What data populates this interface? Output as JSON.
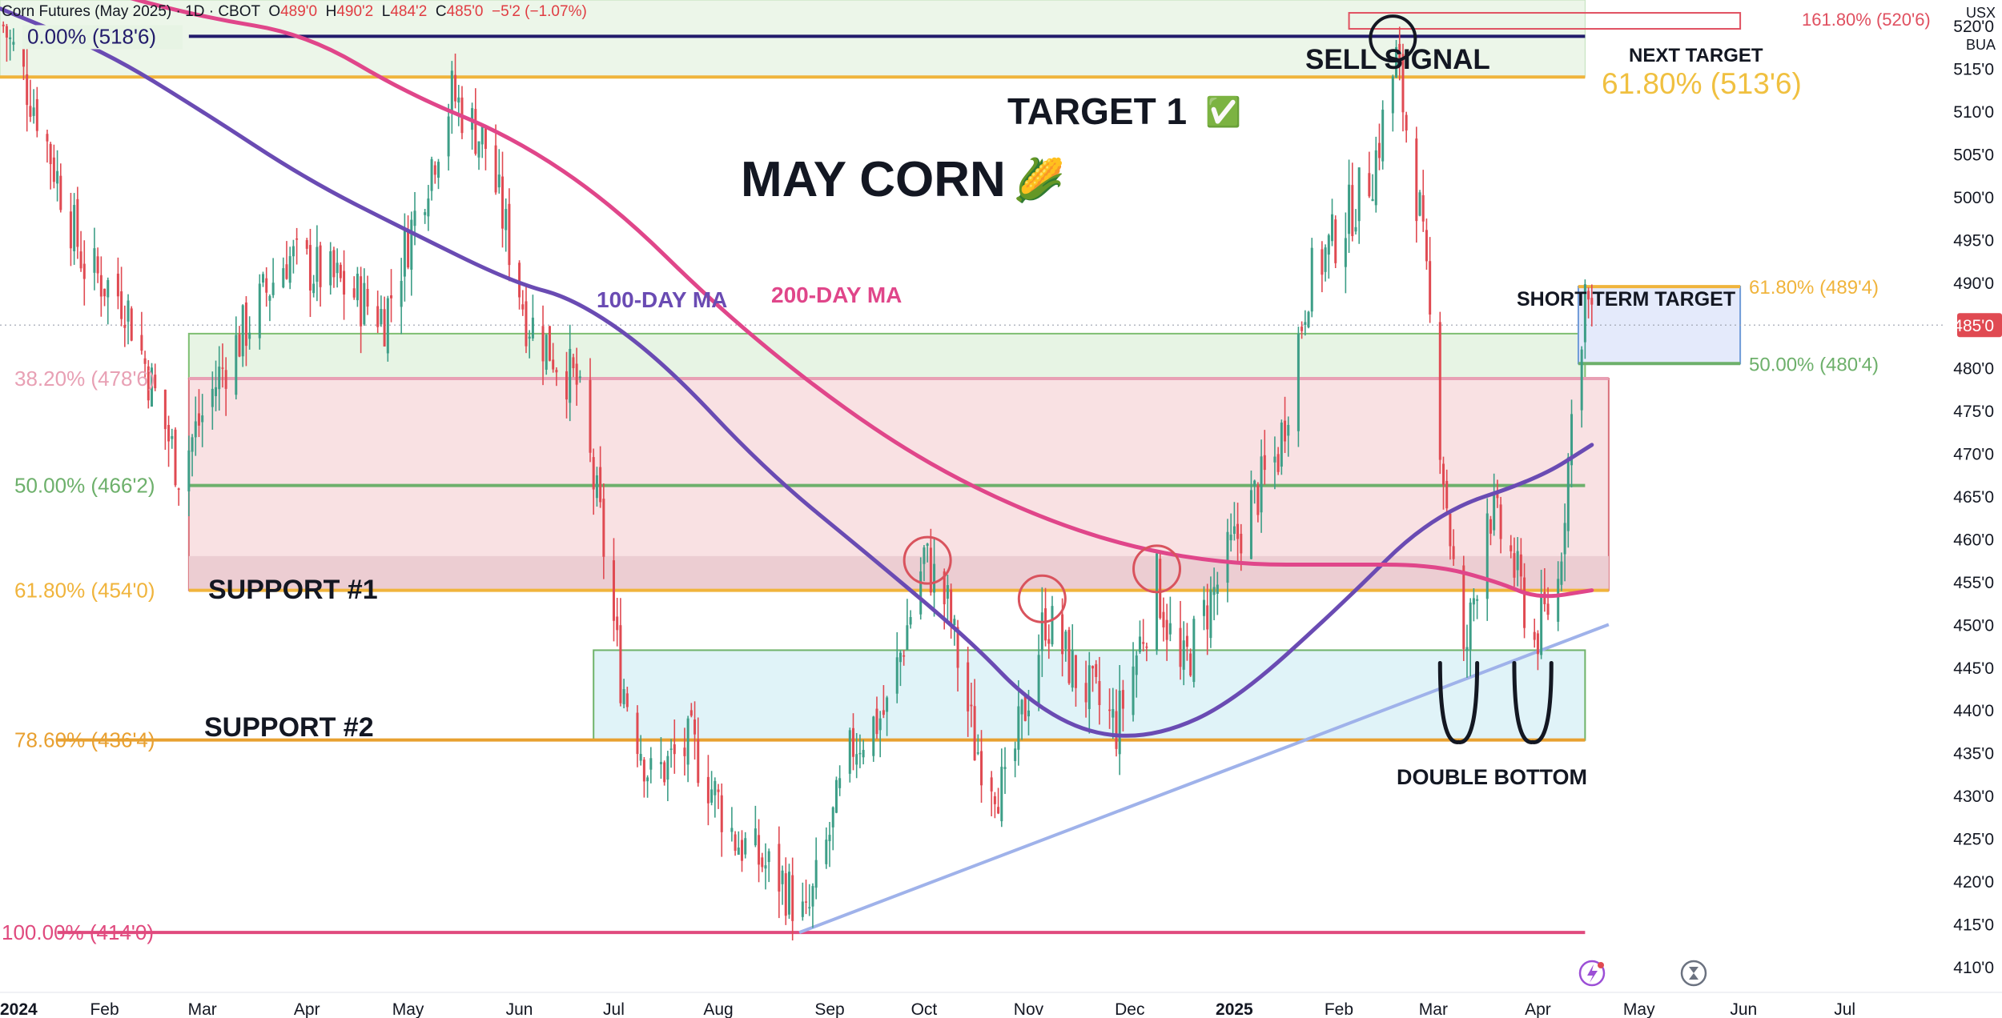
{
  "header": {
    "symbol": "Corn Futures (May 2025)",
    "interval": "1D",
    "exchange": "CBOT",
    "open_label": "O",
    "open": "489'0",
    "high_label": "H",
    "high": "490'2",
    "low_label": "L",
    "low": "484'2",
    "close_label": "C",
    "close": "485'0",
    "change": "−5'2 (−1.07%)"
  },
  "corner": {
    "currency": "USX",
    "unit": "BUA"
  },
  "chart_data": {
    "type": "candlestick",
    "title": "MAY CORN",
    "title_emoji": "🌽",
    "x_type": "date",
    "xlim": [
      "2024-01-01",
      "2025-07-31"
    ],
    "ylim": [
      407,
      523
    ],
    "y_axis_position": "right",
    "y_ticks": [
      {
        "value": 520,
        "label": "520'0"
      },
      {
        "value": 515,
        "label": "515'0"
      },
      {
        "value": 510,
        "label": "510'0"
      },
      {
        "value": 505,
        "label": "505'0"
      },
      {
        "value": 500,
        "label": "500'0"
      },
      {
        "value": 495,
        "label": "495'0"
      },
      {
        "value": 490,
        "label": "490'0"
      },
      {
        "value": 480,
        "label": "480'0"
      },
      {
        "value": 475,
        "label": "475'0"
      },
      {
        "value": 470,
        "label": "470'0"
      },
      {
        "value": 465,
        "label": "465'0"
      },
      {
        "value": 460,
        "label": "460'0"
      },
      {
        "value": 455,
        "label": "455'0"
      },
      {
        "value": 450,
        "label": "450'0"
      },
      {
        "value": 445,
        "label": "445'0"
      },
      {
        "value": 440,
        "label": "440'0"
      },
      {
        "value": 435,
        "label": "435'0"
      },
      {
        "value": 430,
        "label": "430'0"
      },
      {
        "value": 425,
        "label": "425'0"
      },
      {
        "value": 420,
        "label": "420'0"
      },
      {
        "value": 415,
        "label": "415'0"
      },
      {
        "value": 410,
        "label": "410'0"
      }
    ],
    "x_ticks": [
      {
        "date": "2024-01-01",
        "label": "2024",
        "bold": true
      },
      {
        "date": "2024-02-01",
        "label": "Feb"
      },
      {
        "date": "2024-03-01",
        "label": "Mar"
      },
      {
        "date": "2024-04-01",
        "label": "Apr"
      },
      {
        "date": "2024-05-01",
        "label": "May"
      },
      {
        "date": "2024-06-03",
        "label": "Jun"
      },
      {
        "date": "2024-07-01",
        "label": "Jul"
      },
      {
        "date": "2024-08-01",
        "label": "Aug"
      },
      {
        "date": "2024-09-03",
        "label": "Sep"
      },
      {
        "date": "2024-10-01",
        "label": "Oct"
      },
      {
        "date": "2024-11-01",
        "label": "Nov"
      },
      {
        "date": "2024-12-01",
        "label": "Dec"
      },
      {
        "date": "2025-01-01",
        "label": "2025",
        "bold": true
      },
      {
        "date": "2025-02-01",
        "label": "Feb"
      },
      {
        "date": "2025-03-01",
        "label": "Mar"
      },
      {
        "date": "2025-04-01",
        "label": "Apr"
      },
      {
        "date": "2025-05-01",
        "label": "May"
      },
      {
        "date": "2025-06-01",
        "label": "Jun"
      },
      {
        "date": "2025-07-01",
        "label": "Jul"
      }
    ],
    "last_price": {
      "value": 485,
      "label": "485'0"
    },
    "candle_anchors": [
      [
        "2024-01-02",
        520
      ],
      [
        "2024-01-12",
        510
      ],
      [
        "2024-01-26",
        492
      ],
      [
        "2024-02-07",
        488
      ],
      [
        "2024-02-23",
        468
      ],
      [
        "2024-03-07",
        480
      ],
      [
        "2024-03-26",
        493
      ],
      [
        "2024-04-10",
        490
      ],
      [
        "2024-04-24",
        486
      ],
      [
        "2024-05-14",
        512
      ],
      [
        "2024-05-24",
        506
      ],
      [
        "2024-06-05",
        486
      ],
      [
        "2024-06-20",
        478
      ],
      [
        "2024-06-27",
        462
      ],
      [
        "2024-07-03",
        444
      ],
      [
        "2024-07-12",
        432
      ],
      [
        "2024-07-24",
        436
      ],
      [
        "2024-08-06",
        425
      ],
      [
        "2024-08-20",
        420
      ],
      [
        "2024-08-27",
        415
      ],
      [
        "2024-09-10",
        436
      ],
      [
        "2024-09-20",
        440
      ],
      [
        "2024-10-01",
        458
      ],
      [
        "2024-10-08",
        452
      ],
      [
        "2024-10-16",
        436
      ],
      [
        "2024-10-25",
        430
      ],
      [
        "2024-11-06",
        451
      ],
      [
        "2024-11-15",
        444
      ],
      [
        "2024-11-27",
        438
      ],
      [
        "2024-12-09",
        455
      ],
      [
        "2024-12-16",
        444
      ],
      [
        "2024-12-24",
        452
      ],
      [
        "2025-01-06",
        464
      ],
      [
        "2025-01-14",
        470
      ],
      [
        "2025-01-23",
        490
      ],
      [
        "2025-02-04",
        498
      ],
      [
        "2025-02-11",
        503
      ],
      [
        "2025-02-18",
        516
      ],
      [
        "2025-02-25",
        498
      ],
      [
        "2025-03-04",
        468
      ],
      [
        "2025-03-10",
        445
      ],
      [
        "2025-03-17",
        464
      ],
      [
        "2025-03-24",
        458
      ],
      [
        "2025-03-31",
        448
      ],
      [
        "2025-04-07",
        455
      ],
      [
        "2025-04-11",
        474
      ],
      [
        "2025-04-15",
        489
      ],
      [
        "2025-04-17",
        485
      ]
    ],
    "moving_averages": [
      {
        "name": "100-DAY MA",
        "color": "#6a4bb3",
        "points": [
          [
            "2024-01-01",
            522
          ],
          [
            "2024-02-01",
            517
          ],
          [
            "2024-03-01",
            510
          ],
          [
            "2024-04-01",
            502
          ],
          [
            "2024-05-01",
            496
          ],
          [
            "2024-06-01",
            490
          ],
          [
            "2024-06-20",
            488
          ],
          [
            "2024-07-15",
            481
          ],
          [
            "2024-08-15",
            468
          ],
          [
            "2024-09-15",
            458
          ],
          [
            "2024-10-15",
            448
          ],
          [
            "2024-11-01",
            441
          ],
          [
            "2024-11-20",
            437
          ],
          [
            "2024-12-10",
            437
          ],
          [
            "2025-01-01",
            441
          ],
          [
            "2025-02-01",
            452
          ],
          [
            "2025-03-01",
            463
          ],
          [
            "2025-04-01",
            467
          ],
          [
            "2025-04-17",
            471
          ]
        ]
      },
      {
        "name": "200-DAY MA",
        "color": "#e0468a",
        "points": [
          [
            "2024-01-01",
            528
          ],
          [
            "2024-02-01",
            524
          ],
          [
            "2024-03-01",
            521
          ],
          [
            "2024-04-01",
            519
          ],
          [
            "2024-05-01",
            512
          ],
          [
            "2024-06-01",
            507
          ],
          [
            "2024-07-01",
            499
          ],
          [
            "2024-08-01",
            487
          ],
          [
            "2024-09-01",
            477
          ],
          [
            "2024-10-01",
            469
          ],
          [
            "2024-11-01",
            463
          ],
          [
            "2024-12-01",
            459
          ],
          [
            "2025-01-01",
            457
          ],
          [
            "2025-02-01",
            457
          ],
          [
            "2025-03-01",
            457
          ],
          [
            "2025-03-20",
            455
          ],
          [
            "2025-04-01",
            453
          ],
          [
            "2025-04-17",
            454
          ]
        ]
      }
    ],
    "fib_levels": [
      {
        "label": "0.00% (518'6)",
        "value": 518.75,
        "color": "#221b6b"
      },
      {
        "label": "38.20% (478'6)",
        "value": 478.75,
        "color": "#e8a0b4"
      },
      {
        "label": "50.00% (466'2)",
        "value": 466.25,
        "color": "#6db06b"
      },
      {
        "label": "61.80% (454'0)",
        "value": 454.0,
        "color": "#f0b43c"
      },
      {
        "label": "78.60% (436'4)",
        "value": 436.5,
        "color": "#e8a030"
      },
      {
        "label": "100.00% (414'0)",
        "value": 414.0,
        "color": "#e04a7e"
      }
    ],
    "right_levels": [
      {
        "label": "61.80% (489'4)",
        "value": 489.5,
        "color": "#f0b43c"
      },
      {
        "label": "50.00% (480'4)",
        "value": 480.5,
        "color": "#6db06b"
      },
      {
        "label": "161.80% (520'6)",
        "value": 520.75,
        "color": "#e05060"
      },
      {
        "label": "61.80% (513'6)",
        "value": 513.75,
        "color": "#f0c040"
      }
    ],
    "annotations": [
      {
        "text": "TARGET 1",
        "emoji": "✅"
      },
      {
        "text": "SELL SIGNAL"
      },
      {
        "text": "NEXT TARGET"
      },
      {
        "text": "SHORT TERM TARGET"
      },
      {
        "text": "SUPPORT #1"
      },
      {
        "text": "SUPPORT #2"
      },
      {
        "text": "DOUBLE BOTTOM"
      },
      {
        "text": "100-DAY MA",
        "color": "#6a4bb3"
      },
      {
        "text": "200-DAY MA",
        "color": "#e0468a"
      }
    ],
    "colors": {
      "up": "#3d9e87",
      "down": "#e04a52",
      "trendline": "#9fb2ea"
    }
  }
}
